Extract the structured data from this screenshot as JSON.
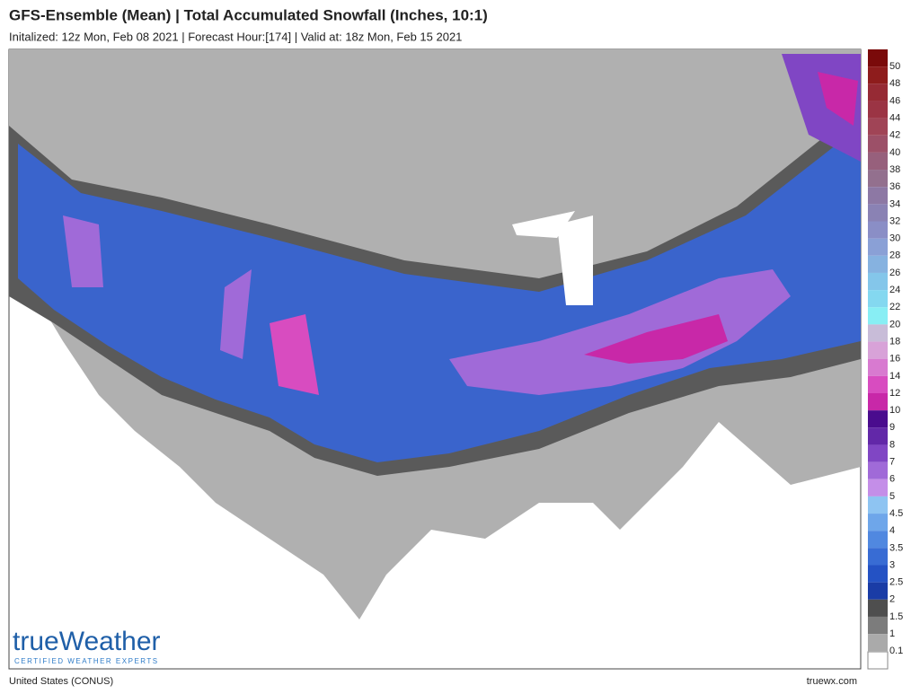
{
  "header": {
    "title": "GFS-Ensemble (Mean) | Total Accumulated Snowfall (Inches, 10:1)",
    "subtitle": "Initalized: 12z Mon, Feb 08 2021 | Forecast Hour:[174] | Valid at: 18z Mon, Feb 15 2021"
  },
  "legend": [
    {
      "label": 50,
      "color": "#7a0a0a"
    },
    {
      "label": 48,
      "color": "#8e1c1c"
    },
    {
      "label": 46,
      "color": "#962a34"
    },
    {
      "label": 44,
      "color": "#9b3444"
    },
    {
      "label": 42,
      "color": "#a04456"
    },
    {
      "label": 40,
      "color": "#9c5068"
    },
    {
      "label": 38,
      "color": "#97607c"
    },
    {
      "label": 36,
      "color": "#93708e"
    },
    {
      "label": 34,
      "color": "#8d78a4"
    },
    {
      "label": 32,
      "color": "#8a82b4"
    },
    {
      "label": 30,
      "color": "#8a8ec6"
    },
    {
      "label": 28,
      "color": "#8aa0d6"
    },
    {
      "label": 26,
      "color": "#86b2e0"
    },
    {
      "label": 24,
      "color": "#84c6ea"
    },
    {
      "label": 22,
      "color": "#84d8f0"
    },
    {
      "label": 20,
      "color": "#88eef4"
    },
    {
      "label": 18,
      "color": "#c8bcd8"
    },
    {
      "label": 16,
      "color": "#d8a2d8"
    },
    {
      "label": 14,
      "color": "#d87ad0"
    },
    {
      "label": 12,
      "color": "#d84cc0"
    },
    {
      "label": 10,
      "color": "#c828a8"
    },
    {
      "label": 9,
      "color": "#4a0c8e"
    },
    {
      "label": 8,
      "color": "#6228a8"
    },
    {
      "label": 7,
      "color": "#8046c4"
    },
    {
      "label": 6,
      "color": "#a06ad8"
    },
    {
      "label": 5,
      "color": "#c48ee8"
    },
    {
      "label": 4.5,
      "color": "#8ec4f2"
    },
    {
      "label": 4,
      "color": "#6ea6ea"
    },
    {
      "label": 3.5,
      "color": "#5088e0"
    },
    {
      "label": 3,
      "color": "#386cd4"
    },
    {
      "label": 2.5,
      "color": "#2452c4"
    },
    {
      "label": 2,
      "color": "#1a3ca6"
    },
    {
      "label": 1.5,
      "color": "#4e4e4e"
    },
    {
      "label": 1,
      "color": "#7c7c7c"
    },
    {
      "label": 0.1,
      "color": "#aaaaaa"
    }
  ],
  "logo": {
    "brand": "trueWeather",
    "tagline": "CERTIFIED WEATHER EXPERTS"
  },
  "footer": {
    "region": "United States (CONUS)",
    "site": "truewx.com"
  }
}
